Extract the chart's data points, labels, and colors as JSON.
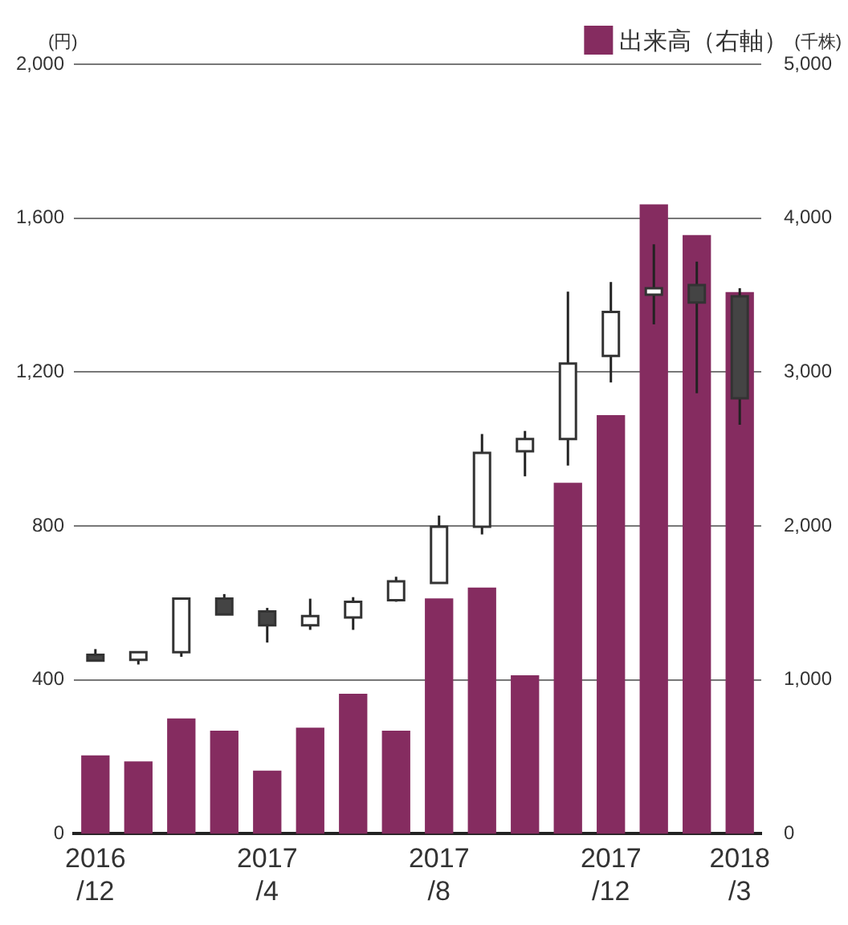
{
  "chart_data": {
    "type": "candlestick",
    "ylabel": "(円)",
    "y2label": "(千株)",
    "categories": [
      "2016/12",
      null,
      null,
      null,
      "2017/4",
      null,
      null,
      null,
      "2017/8",
      null,
      null,
      null,
      "2017/12",
      null,
      null,
      "2018/3"
    ],
    "ohlc": [
      [
        465,
        480,
        448,
        450
      ],
      [
        452,
        472,
        440,
        472
      ],
      [
        472,
        611,
        460,
        611
      ],
      [
        611,
        623,
        570,
        570
      ],
      [
        578,
        587,
        497,
        542
      ],
      [
        542,
        611,
        530,
        566
      ],
      [
        562,
        615,
        530,
        603
      ],
      [
        607,
        668,
        603,
        656
      ],
      [
        652,
        827,
        652,
        798
      ],
      [
        798,
        1039,
        778,
        990
      ],
      [
        994,
        1047,
        929,
        1026
      ],
      [
        1026,
        1409,
        957,
        1222
      ],
      [
        1242,
        1434,
        1173,
        1356
      ],
      [
        1401,
        1532,
        1324,
        1418
      ],
      [
        1426,
        1487,
        1145,
        1381
      ],
      [
        1397,
        1418,
        1063,
        1132
      ]
    ],
    "series": [
      {
        "type": "bar",
        "name": "出来高（右軸）",
        "color": "#852c60",
        "axis": "y2",
        "values": [
          510,
          470,
          750,
          670,
          410,
          690,
          910,
          670,
          1530,
          1600,
          1030,
          2280,
          2720,
          4090,
          3890,
          3520
        ]
      }
    ],
    "ylim": [
      0,
      2000
    ],
    "yticks": [
      0,
      400,
      800,
      {
        "value": 1200,
        "label": "1,200"
      },
      {
        "value": 1600,
        "label": "1,600"
      },
      {
        "value": 2000,
        "label": "2,000"
      }
    ],
    "y2lim": [
      0,
      5000
    ],
    "y2ticks": [
      0,
      {
        "value": 1000,
        "label": "1,000"
      },
      {
        "value": 2000,
        "label": "2,000"
      },
      {
        "value": 3000,
        "label": "3,000"
      },
      {
        "value": 4000,
        "label": "4,000"
      },
      {
        "value": 5000,
        "label": "5,000"
      }
    ],
    "grid": "y",
    "legend": "top right"
  }
}
